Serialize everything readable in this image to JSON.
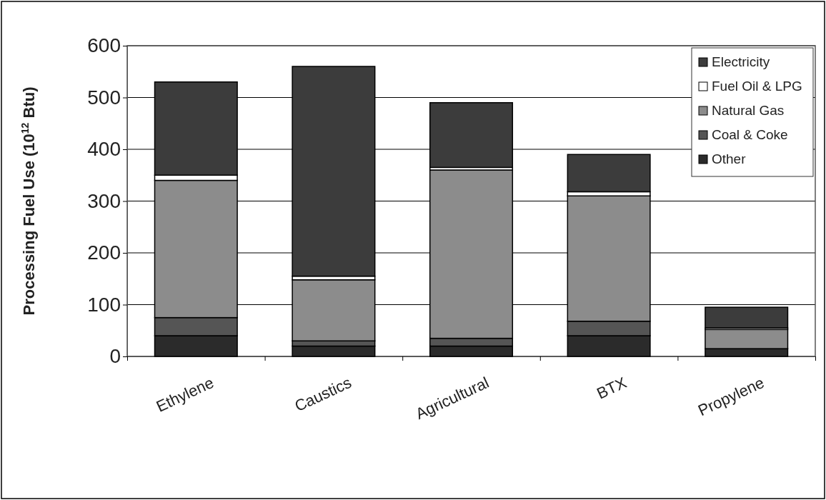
{
  "chart_data": {
    "type": "bar",
    "stacked": true,
    "ylabel": "Processing Fuel Use (10$^{12}$ Btu)",
    "categories": [
      "Ethylene",
      "Caustics",
      "Agricultural",
      "BTX",
      "Propylene"
    ],
    "series": [
      {
        "name": "Other",
        "color": "#2b2b2b",
        "values": [
          40,
          20,
          20,
          40,
          15
        ]
      },
      {
        "name": "Coal & Coke",
        "color": "#555555",
        "values": [
          35,
          10,
          15,
          28,
          0
        ]
      },
      {
        "name": "Natural Gas",
        "color": "#8c8c8c",
        "values": [
          265,
          118,
          325,
          242,
          37
        ]
      },
      {
        "name": "Fuel Oil & LPG",
        "color": "#ffffff",
        "values": [
          10,
          7,
          5,
          8,
          3
        ]
      },
      {
        "name": "Electricity",
        "color": "#3c3c3c",
        "values": [
          180,
          405,
          125,
          72,
          40
        ]
      }
    ],
    "ylim": [
      0,
      600
    ],
    "yticks": [
      0,
      100,
      200,
      300,
      400,
      500,
      600
    ],
    "grid": "y",
    "legend": "top right"
  }
}
